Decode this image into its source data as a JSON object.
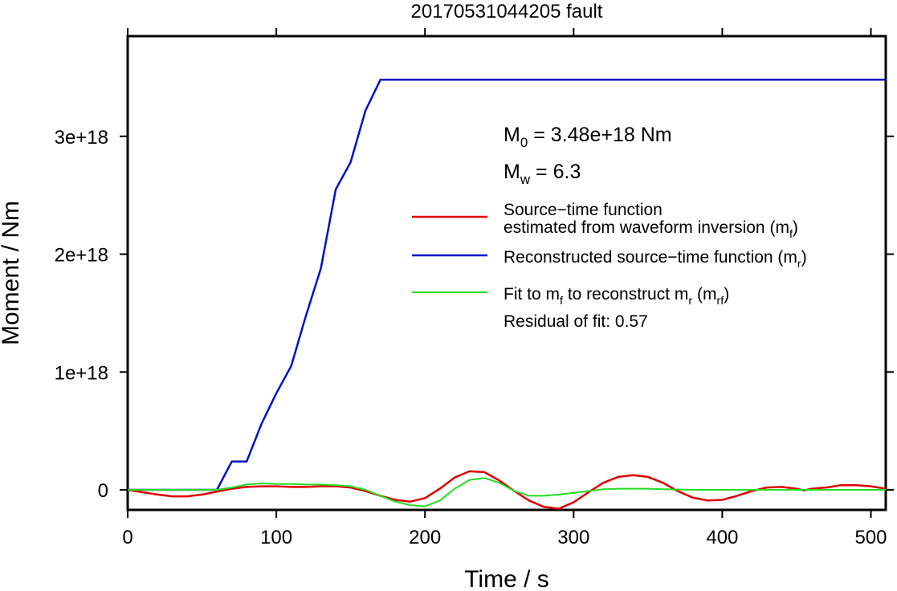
{
  "chart_data": {
    "type": "line",
    "title": "20170531044205 fault",
    "xlabel": "Time / s",
    "ylabel": "Moment / Nm",
    "xlim": [
      0,
      510
    ],
    "ylim": [
      -1.7e+17,
      3.85e+18
    ],
    "xticks": [
      0,
      100,
      200,
      300,
      400,
      500
    ],
    "xtick_labels": [
      "0",
      "100",
      "200",
      "300",
      "400",
      "500"
    ],
    "yticks": [
      0,
      1e+18,
      2e+18,
      3e+18
    ],
    "ytick_labels": [
      "0",
      "1e+18",
      "2e+18",
      "3e+18"
    ],
    "grid": false,
    "legend_position": "right",
    "annotations": {
      "m0": {
        "sym": "M",
        "sub": "0",
        "text": " = 3.48e+18 Nm"
      },
      "mw": {
        "sym": "M",
        "sub": "w",
        "text": " = 6.3"
      },
      "residual": "Residual of fit: 0.57"
    },
    "legend": [
      {
        "color": "#e00000",
        "parts": [
          [
            "Source−time function",
            ""
          ]
        ],
        "line2": [
          [
            "estimated from waveform inversion (m",
            ""
          ],
          [
            "f",
            "sub"
          ],
          [
            ")",
            ""
          ]
        ]
      },
      {
        "color": "#0010c8",
        "parts": [
          [
            "Reconstructed source−time function (m",
            ""
          ],
          [
            "r",
            "sub"
          ],
          [
            ")",
            ""
          ]
        ]
      },
      {
        "color": "#22dd22",
        "parts": [
          [
            "Fit to m",
            ""
          ],
          [
            "f",
            "sub"
          ],
          [
            " to reconstruct m",
            ""
          ],
          [
            "r",
            "sub"
          ],
          [
            " (m",
            ""
          ],
          [
            "rf",
            "sub"
          ],
          [
            ")",
            ""
          ]
        ]
      }
    ],
    "series": [
      {
        "color": "#0010c8",
        "x": [
          0,
          60,
          70,
          80,
          90,
          100,
          110,
          120,
          130,
          140,
          150,
          160,
          170,
          510
        ],
        "y": [
          0,
          0,
          2.4e+17,
          2.4e+17,
          5.6e+17,
          8.2e+17,
          1.05e+18,
          1.48e+18,
          1.88e+18,
          2.55e+18,
          2.78e+18,
          3.22e+18,
          3.48e+18,
          3.48e+18
        ]
      },
      {
        "color": "#e00000",
        "x": [
          0,
          10,
          20,
          30,
          40,
          50,
          60,
          70,
          80,
          90,
          100,
          110,
          120,
          130,
          140,
          150,
          160,
          170,
          180,
          190,
          200,
          210,
          220,
          230,
          240,
          250,
          260,
          270,
          280,
          290,
          300,
          310,
          320,
          330,
          340,
          350,
          360,
          370,
          380,
          390,
          400,
          410,
          420,
          430,
          440,
          450,
          455,
          460,
          470,
          480,
          490,
          500,
          510
        ],
        "y": [
          0,
          -2e+16,
          -4e+16,
          -5.5e+16,
          -5.5e+16,
          -4e+16,
          -1.5e+16,
          1e+16,
          2.5e+16,
          3e+16,
          3e+16,
          2.5e+16,
          2.5e+16,
          3e+16,
          3e+16,
          2e+16,
          -1e+16,
          -5e+16,
          -8.5e+16,
          -1e+17,
          -7e+16,
          1e+16,
          1.05e+17,
          1.58e+17,
          1.5e+17,
          8e+16,
          -1e+16,
          -9e+16,
          -1.45e+17,
          -1.6e+17,
          -1.05e+17,
          -2e+16,
          6e+16,
          1.1e+17,
          1.25e+17,
          1.1e+17,
          6e+16,
          -1e+16,
          -6.5e+16,
          -9e+16,
          -8.5e+16,
          -5e+16,
          -1e+16,
          2e+16,
          2.5e+16,
          1e+16,
          -5000000000000000.0,
          1e+16,
          2e+16,
          4e+16,
          4e+16,
          3e+16,
          1e+16
        ]
      },
      {
        "color": "#22dd22",
        "x": [
          0,
          20,
          40,
          60,
          70,
          80,
          90,
          100,
          110,
          120,
          130,
          140,
          150,
          160,
          170,
          180,
          190,
          200,
          210,
          220,
          230,
          240,
          250,
          260,
          270,
          280,
          290,
          300,
          310,
          320,
          330,
          340,
          350,
          360,
          380,
          400,
          420,
          440,
          460,
          480,
          500,
          510
        ],
        "y": [
          0,
          0,
          0,
          0,
          2e+16,
          4.5e+16,
          5.5e+16,
          5e+16,
          5e+16,
          4.5e+16,
          4.5e+16,
          4e+16,
          3e+16,
          0,
          -5e+16,
          -1e+17,
          -1.3e+17,
          -1.4e+17,
          -9e+16,
          1e+16,
          8.5e+16,
          1e+17,
          6e+16,
          -1e+16,
          -5e+16,
          -5e+16,
          -4e+16,
          -2.5e+16,
          -1e+16,
          5000000000000000.0,
          1e+16,
          1e+16,
          1e+16,
          5000000000000000.0,
          0,
          0,
          0,
          0,
          0,
          0,
          0,
          0
        ]
      }
    ]
  }
}
